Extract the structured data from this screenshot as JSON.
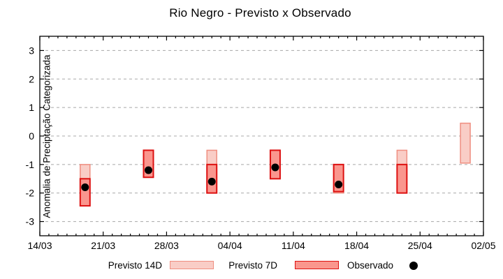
{
  "chart_data": {
    "type": "candlestick",
    "title": "Rio Negro - Previsto x Observado",
    "ylabel": "Anomalia de Preciptação Categorizada",
    "xlabel": "",
    "ylim": [
      -3.5,
      3.5
    ],
    "yticks": [
      3,
      2,
      1,
      0,
      -1,
      -2,
      -3
    ],
    "grid": "horizontal dashed gridlines at integer y values",
    "legend_position": "bottom, outside plot",
    "x_unit": "days after 14/03",
    "xlim_days": [
      0,
      49
    ],
    "x_minor_tick_days": 1,
    "xticks": [
      {
        "day": 0,
        "label": "14/03"
      },
      {
        "day": 7,
        "label": "21/03"
      },
      {
        "day": 14,
        "label": "28/03"
      },
      {
        "day": 21,
        "label": "04/04"
      },
      {
        "day": 28,
        "label": "11/04"
      },
      {
        "day": 35,
        "label": "18/04"
      },
      {
        "day": 42,
        "label": "25/04"
      },
      {
        "day": 49,
        "label": "02/05"
      }
    ],
    "series": [
      {
        "name": "Previsto 14D",
        "type": "box",
        "fill": "#f9cdc6",
        "border": "#ef8e80"
      },
      {
        "name": "Previsto 7D",
        "type": "box",
        "fill": "#fa968e",
        "border": "#dd1111"
      },
      {
        "name": "Observado",
        "type": "point",
        "color": "#000000"
      }
    ],
    "points": [
      {
        "date": "19/03",
        "day": 5,
        "previsto_14d": [
          -1.0,
          -2.0
        ],
        "previsto_7d": [
          -1.5,
          -2.45
        ],
        "observado": -1.8
      },
      {
        "date": "26/03",
        "day": 12,
        "previsto_14d": null,
        "previsto_7d": [
          -0.5,
          -1.45
        ],
        "observado": -1.2
      },
      {
        "date": "02/04",
        "day": 19,
        "previsto_14d": [
          -0.5,
          -2.0
        ],
        "previsto_7d": [
          -1.0,
          -2.0
        ],
        "observado": -1.6
      },
      {
        "date": "09/04",
        "day": 26,
        "previsto_14d": null,
        "previsto_7d": [
          -0.5,
          -1.5
        ],
        "observado": -1.1
      },
      {
        "date": "16/04",
        "day": 33,
        "previsto_14d": [
          -1.0,
          -2.0
        ],
        "previsto_7d": [
          -1.0,
          -1.95
        ],
        "observado": -1.7
      },
      {
        "date": "23/04",
        "day": 40,
        "previsto_14d": [
          -0.5,
          -2.0
        ],
        "previsto_7d": [
          -1.0,
          -2.0
        ],
        "observado": null
      },
      {
        "date": "30/04",
        "day": 47,
        "previsto_14d": [
          0.45,
          -0.95
        ],
        "previsto_7d": null,
        "observado": null
      }
    ],
    "colors": {
      "background": "#ffffff",
      "axis": "#000000",
      "grid": "#a8a8a8",
      "observado": "#000000"
    }
  }
}
